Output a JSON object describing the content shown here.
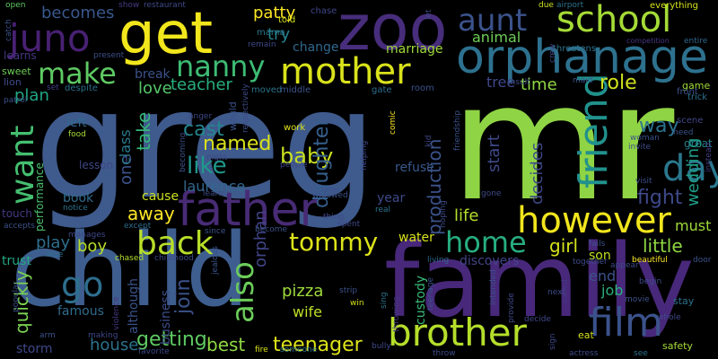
{
  "words": [
    {
      "text": "greg",
      "color": "#3f5a8c"
    },
    {
      "text": "mr",
      "color": "#8fd444"
    },
    {
      "text": "child",
      "color": "#3e5e8f"
    },
    {
      "text": "family",
      "color": "#48287a"
    },
    {
      "text": "zoo",
      "color": "#472d7b"
    },
    {
      "text": "get",
      "color": "#f2e61c"
    },
    {
      "text": "father",
      "color": "#482b75"
    },
    {
      "text": "orphanage",
      "color": "#2d718e"
    },
    {
      "text": "school",
      "color": "#a5db36"
    },
    {
      "text": "mother",
      "color": "#d9e21b"
    },
    {
      "text": "brother",
      "color": "#b5de2b"
    },
    {
      "text": "however",
      "color": "#f1e51d"
    },
    {
      "text": "film",
      "color": "#3b528b"
    },
    {
      "text": "friend",
      "color": "#21918c"
    },
    {
      "text": "day",
      "color": "#2a788e"
    },
    {
      "text": "juno",
      "color": "#482173"
    },
    {
      "text": "aunt",
      "color": "#3b528b"
    },
    {
      "text": "nanny",
      "color": "#3dbc74"
    },
    {
      "text": "make",
      "color": "#5ec962"
    },
    {
      "text": "want",
      "color": "#44bf70"
    },
    {
      "text": "back",
      "color": "#b8de29"
    },
    {
      "text": "tommy",
      "color": "#dde318"
    },
    {
      "text": "home",
      "color": "#27ad81"
    },
    {
      "text": "also",
      "color": "#6ccd5a"
    },
    {
      "text": "go",
      "color": "#2e6e8e"
    },
    {
      "text": "like",
      "color": "#1f988b"
    },
    {
      "text": "baby",
      "color": "#cae11f"
    },
    {
      "text": "named",
      "color": "#d9e21b"
    },
    {
      "text": "cast",
      "color": "#24868e"
    },
    {
      "text": "daughter",
      "color": "#355f8d"
    },
    {
      "text": "production",
      "color": "#3b528b"
    },
    {
      "text": "way",
      "color": "#2c728e"
    },
    {
      "text": "fight",
      "color": "#3e4989"
    },
    {
      "text": "wedding",
      "color": "#1f9e89"
    },
    {
      "text": "little",
      "color": "#8fd744"
    },
    {
      "text": "must",
      "color": "#9fda3a"
    },
    {
      "text": "role",
      "color": "#d0e11c"
    },
    {
      "text": "time",
      "color": "#8fd744"
    },
    {
      "text": "tree",
      "color": "#3f4788"
    },
    {
      "text": "animal",
      "color": "#6ece58"
    },
    {
      "text": "becomes",
      "color": "#38588c"
    },
    {
      "text": "patty",
      "color": "#fde725"
    },
    {
      "text": "try",
      "color": "#26828e"
    },
    {
      "text": "teacher",
      "color": "#29af7f"
    },
    {
      "text": "love",
      "color": "#54c568"
    },
    {
      "text": "plan",
      "color": "#22a785"
    },
    {
      "text": "take",
      "color": "#35b779"
    },
    {
      "text": "one",
      "color": "#3b528b"
    },
    {
      "text": "class",
      "color": "#2a788e"
    },
    {
      "text": "away",
      "color": "#fde725"
    },
    {
      "text": "laurence",
      "color": "#31688e"
    },
    {
      "text": "getting",
      "color": "#5ec962"
    },
    {
      "text": "best",
      "color": "#8fd744"
    },
    {
      "text": "teenager",
      "color": "#dde318"
    },
    {
      "text": "orphan",
      "color": "#414487"
    },
    {
      "text": "pizza",
      "color": "#9fda3a"
    },
    {
      "text": "wife",
      "color": "#bddf26"
    },
    {
      "text": "join",
      "color": "#3b528b"
    },
    {
      "text": "house",
      "color": "#2c728e"
    },
    {
      "text": "quickly",
      "color": "#7ad151"
    },
    {
      "text": "play",
      "color": "#2e6f8e"
    },
    {
      "text": "boy",
      "color": "#b8de29"
    },
    {
      "text": "life",
      "color": "#b5de2b"
    },
    {
      "text": "start",
      "color": "#3e4989"
    },
    {
      "text": "decides",
      "color": "#3f4788"
    },
    {
      "text": "end",
      "color": "#3b528b"
    },
    {
      "text": "job",
      "color": "#2ab07f"
    },
    {
      "text": "girl",
      "color": "#d5e21a"
    },
    {
      "text": "son",
      "color": "#c2df23"
    },
    {
      "text": "break",
      "color": "#3b528b"
    },
    {
      "text": "marriage",
      "color": "#9fda3a"
    },
    {
      "text": "change",
      "color": "#31688e"
    },
    {
      "text": "left",
      "color": "#31688e"
    },
    {
      "text": "lesson",
      "color": "#3f4788"
    },
    {
      "text": "book",
      "color": "#2f6c8e"
    },
    {
      "text": "cause",
      "color": "#cae11f"
    },
    {
      "text": "refuse",
      "color": "#38598c"
    },
    {
      "text": "year",
      "color": "#3e4a89"
    },
    {
      "text": "water",
      "color": "#d8e219"
    },
    {
      "text": "discovers",
      "color": "#414487"
    },
    {
      "text": "custody",
      "color": "#38b977"
    },
    {
      "text": "performance",
      "color": "#4ac16d"
    },
    {
      "text": "famous",
      "color": "#2f6b8e"
    },
    {
      "text": "storm",
      "color": "#3f4788"
    },
    {
      "text": "business",
      "color": "#3d4e8a"
    },
    {
      "text": "although",
      "color": "#3b528b"
    },
    {
      "text": "trust",
      "color": "#22a884"
    },
    {
      "text": "touch",
      "color": "#443983"
    },
    {
      "text": "learns",
      "color": "#453581"
    },
    {
      "text": "sweet",
      "color": "#6ece58"
    },
    {
      "text": "lion",
      "color": "#3e4c8a"
    },
    {
      "text": "set",
      "color": "#433e85"
    },
    {
      "text": "despite",
      "color": "#2d708e"
    },
    {
      "text": "room",
      "color": "#3b528b"
    },
    {
      "text": "gate",
      "color": "#2e6f8e"
    },
    {
      "text": "moved",
      "color": "#2c738e"
    },
    {
      "text": "middle",
      "color": "#3b528b"
    },
    {
      "text": "mama",
      "color": "#2a788e"
    },
    {
      "text": "told",
      "color": "#d8e219"
    },
    {
      "text": "chase",
      "color": "#3f4788"
    },
    {
      "text": "show",
      "color": "#453882"
    },
    {
      "text": "restaurant",
      "color": "#3e4989"
    },
    {
      "text": "open",
      "color": "#5ec962"
    },
    {
      "text": "catch",
      "color": "#3b528b"
    },
    {
      "text": "present",
      "color": "#3b528b"
    },
    {
      "text": "threatens",
      "color": "#2c728e"
    },
    {
      "text": "entire",
      "color": "#31688e"
    },
    {
      "text": "everything",
      "color": "#d5e21a"
    },
    {
      "text": "due",
      "color": "#cae11f"
    },
    {
      "text": "airport",
      "color": "#2c728e"
    },
    {
      "text": "competition",
      "color": "#453882"
    },
    {
      "text": "insult",
      "color": "#3e4c8a"
    },
    {
      "text": "game",
      "color": "#a0da39"
    },
    {
      "text": "front",
      "color": "#3b528b"
    },
    {
      "text": "trick",
      "color": "#2c728e"
    },
    {
      "text": "scene",
      "color": "#3f4788"
    },
    {
      "text": "great",
      "color": "#26828e"
    },
    {
      "text": "visit",
      "color": "#3e4c8a"
    },
    {
      "text": "instead",
      "color": "#433e85"
    },
    {
      "text": "food",
      "color": "#a5db36"
    },
    {
      "text": "anger",
      "color": "#3e4989"
    },
    {
      "text": "work",
      "color": "#dde318"
    },
    {
      "text": "people",
      "color": "#3f4788"
    },
    {
      "text": "widowed",
      "color": "#3b528b"
    },
    {
      "text": "learn",
      "color": "#3e4c8a"
    },
    {
      "text": "later",
      "color": "#3b528b"
    },
    {
      "text": "real",
      "color": "#2c728e"
    },
    {
      "text": "spent",
      "color": "#3e4989"
    },
    {
      "text": "thing",
      "color": "#3e4a89"
    },
    {
      "text": "notice",
      "color": "#2c728e"
    },
    {
      "text": "except",
      "color": "#2e6e8e"
    },
    {
      "text": "since",
      "color": "#3b528b"
    },
    {
      "text": "become",
      "color": "#3b528b"
    },
    {
      "text": "chased",
      "color": "#b5de2b"
    },
    {
      "text": "childhood",
      "color": "#3e4c8a"
    },
    {
      "text": "jealous",
      "color": "#3b528b"
    },
    {
      "text": "manages",
      "color": "#3f4788"
    },
    {
      "text": "lose",
      "color": "#2c728e"
    },
    {
      "text": "violence",
      "color": "#453882"
    },
    {
      "text": "popular",
      "color": "#3b528b"
    },
    {
      "text": "arm",
      "color": "#3b528b"
    },
    {
      "text": "making",
      "color": "#3e4989"
    },
    {
      "text": "favorite",
      "color": "#3e4989"
    },
    {
      "text": "fire",
      "color": "#dde318"
    },
    {
      "text": "someone",
      "color": "#2c728e"
    },
    {
      "text": "win",
      "color": "#d8e219"
    },
    {
      "text": "strip",
      "color": "#3b528b"
    },
    {
      "text": "sing",
      "color": "#2c728e"
    },
    {
      "text": "throwing",
      "color": "#453882"
    },
    {
      "text": "teenage",
      "color": "#3b528b"
    },
    {
      "text": "bully",
      "color": "#3e4989"
    },
    {
      "text": "throw",
      "color": "#3e4c8a"
    },
    {
      "text": "living",
      "color": "#31688e"
    },
    {
      "text": "intended",
      "color": "#3b528b"
    },
    {
      "text": "provide",
      "color": "#3f4788"
    },
    {
      "text": "decide",
      "color": "#3e4989"
    },
    {
      "text": "eat",
      "color": "#d5e21a"
    },
    {
      "text": "actress",
      "color": "#3e4c8a"
    },
    {
      "text": "see",
      "color": "#2c728e"
    },
    {
      "text": "safety",
      "color": "#a5db36"
    },
    {
      "text": "movie",
      "color": "#3b528b"
    },
    {
      "text": "stay",
      "color": "#2c728e"
    },
    {
      "text": "whole",
      "color": "#3e4989"
    },
    {
      "text": "begin",
      "color": "#3e4c8a"
    },
    {
      "text": "beautiful",
      "color": "#fde725"
    },
    {
      "text": "door",
      "color": "#3b528b"
    },
    {
      "text": "appear",
      "color": "#3e4989"
    },
    {
      "text": "together",
      "color": "#3e4c8a"
    },
    {
      "text": "fails",
      "color": "#3b528b"
    },
    {
      "text": "next",
      "color": "#3e4c8a"
    },
    {
      "text": "called",
      "color": "#453882"
    },
    {
      "text": "sign",
      "color": "#3e4989"
    },
    {
      "text": "friendship",
      "color": "#3b528b"
    },
    {
      "text": "kid",
      "color": "#3e4989"
    },
    {
      "text": "comic",
      "color": "#fde725"
    },
    {
      "text": "hoping",
      "color": "#3e4c8a"
    },
    {
      "text": "gone",
      "color": "#3e4989"
    },
    {
      "text": "woman",
      "color": "#3b528b"
    },
    {
      "text": "invite",
      "color": "#3e4c8a"
    },
    {
      "text": "need",
      "color": "#3b528b"
    },
    {
      "text": "crew",
      "color": "#3e4989"
    },
    {
      "text": "maid",
      "color": "#3b528b"
    },
    {
      "text": "let",
      "color": "#3e4c8a"
    },
    {
      "text": "would",
      "color": "#3b528b"
    },
    {
      "text": "respectively",
      "color": "#3e4c8a"
    },
    {
      "text": "night",
      "color": "#3e4989"
    },
    {
      "text": "becoming",
      "color": "#3b528b"
    },
    {
      "text": "helping",
      "color": "#3e4989"
    },
    {
      "text": "patrol",
      "color": "#3b528b"
    },
    {
      "text": "remain",
      "color": "#3e4989"
    },
    {
      "text": "accepts",
      "color": "#3b528b"
    }
  ]
}
